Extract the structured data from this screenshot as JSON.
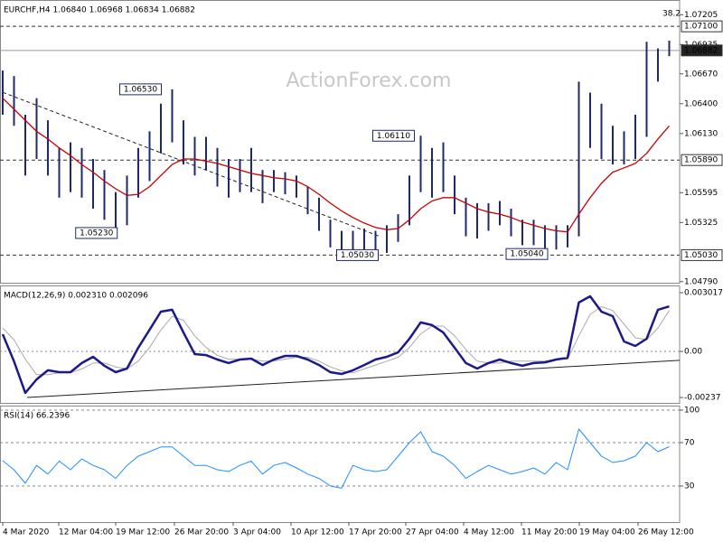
{
  "chart_data": [
    {
      "type": "hlbar",
      "title": "EURCHF,H4  1.06840 1.06968 1.06834 1.06882",
      "watermark": "ActionForex.com",
      "fib_label": "38.2",
      "xlim": [
        -0.24,
        59.92
      ],
      "ylim": [
        1.0478,
        1.0733
      ],
      "yticks": [
        1.07205,
        1.06935,
        {
          "value": 1.0667,
          "label": "1.06670"
        },
        {
          "value": 1.064,
          "label": "1.06400"
        },
        {
          "value": 1.0613,
          "label": "1.06130"
        },
        1.05595,
        1.05325,
        {
          "value": 1.0479,
          "label": "1.04790"
        }
      ],
      "series": [
        {
          "color": "#1c2a6b",
          "high": [
            1.067,
            1.0665,
            1.063,
            1.0645,
            1.0625,
            1.06,
            1.0605,
            1.06,
            1.059,
            1.058,
            1.056,
            1.0575,
            1.06,
            1.0615,
            1.064,
            1.0653,
            1.0625,
            1.061,
            1.061,
            1.06,
            1.059,
            1.059,
            1.06,
            1.058,
            1.058,
            1.0578,
            1.0575,
            1.0565,
            1.0555,
            1.0535,
            1.0525,
            1.0525,
            1.0527,
            1.0525,
            1.053,
            1.054,
            1.0575,
            1.0611,
            1.06,
            1.0605,
            1.0575,
            1.0555,
            1.055,
            1.055,
            1.0552,
            1.0545,
            1.0535,
            1.0535,
            1.053,
            1.053,
            1.053,
            1.066,
            1.065,
            1.064,
            1.062,
            1.0615,
            1.063,
            1.0696,
            1.069,
            1.0697
          ],
          "low": [
            1.063,
            1.062,
            1.0575,
            1.059,
            1.0575,
            1.0555,
            1.056,
            1.0555,
            1.0545,
            1.0535,
            1.0523,
            1.053,
            1.0555,
            1.057,
            1.0595,
            1.0605,
            1.0585,
            1.0575,
            1.058,
            1.0565,
            1.0555,
            1.056,
            1.056,
            1.055,
            1.056,
            1.0558,
            1.0555,
            1.054,
            1.0525,
            1.051,
            1.0503,
            1.0506,
            1.0507,
            1.0505,
            1.0505,
            1.0515,
            1.053,
            1.056,
            1.0555,
            1.056,
            1.054,
            1.052,
            1.0518,
            1.0525,
            1.053,
            1.052,
            1.0512,
            1.0512,
            1.0504,
            1.0508,
            1.051,
            1.052,
            1.06,
            1.059,
            1.0585,
            1.0585,
            1.059,
            1.061,
            1.066,
            1.0683
          ]
        },
        {
          "color": "#cc0000",
          "values": [
            1.0645,
            1.0635,
            1.0625,
            1.0615,
            1.0608,
            1.06,
            1.0593,
            1.0585,
            1.0578,
            1.057,
            1.0563,
            1.0557,
            1.0558,
            1.0565,
            1.0575,
            1.0585,
            1.059,
            1.059,
            1.0588,
            1.0586,
            1.0583,
            1.058,
            1.0577,
            1.0575,
            1.0573,
            1.0572,
            1.057,
            1.0565,
            1.0558,
            1.055,
            1.0543,
            1.0537,
            1.0532,
            1.0528,
            1.0526,
            1.0527,
            1.0535,
            1.0545,
            1.0552,
            1.0555,
            1.0555,
            1.055,
            1.0545,
            1.0542,
            1.054,
            1.0537,
            1.0533,
            1.053,
            1.0527,
            1.0525,
            1.0524,
            1.054,
            1.0555,
            1.0568,
            1.0578,
            1.0582,
            1.0586,
            1.0595,
            1.0608,
            1.062
          ]
        }
      ],
      "trendlines": [
        {
          "x": [
            0,
            33.4
          ],
          "y": [
            1.06503,
            1.05198
          ]
        }
      ],
      "levels": [
        {
          "value": 1.071,
          "label": "1.07100",
          "style": "dashed"
        },
        {
          "value": 1.06882,
          "label": "1.06882",
          "style": "current"
        },
        {
          "value": 1.0589,
          "label": "1.05890",
          "style": "dashed"
        },
        {
          "value": 1.0503,
          "label": "1.05030",
          "style": "dashed"
        }
      ],
      "annotations": [
        {
          "value": 1.0653,
          "label": "1.06530",
          "x": 12.2
        },
        {
          "value": 1.0611,
          "label": "1.06110",
          "x": 34.6
        },
        {
          "value": 1.0523,
          "label": "1.05230",
          "x": 8.3
        },
        {
          "value": 1.0503,
          "label": "1.05030",
          "x": 31.4
        },
        {
          "value": 1.0504,
          "label": "1.05040",
          "x": 46.4
        }
      ]
    },
    {
      "type": "line",
      "title": "MACD(12,26,9) 0.002310 0.002096",
      "xlim": [
        -0.24,
        59.92
      ],
      "ylim": [
        -0.002646,
        0.003342
      ],
      "yticks": [
        0.003017,
        {
          "value": 0,
          "label": "0.00"
        },
        -0.00237
      ],
      "series": [
        {
          "color": "#aaaaaa",
          "width": 1,
          "values": [
            0.0012,
            0.0006,
            -0.0004,
            -0.0012,
            -0.0012,
            -0.0011,
            -0.0011,
            -0.0009,
            -0.0006,
            -0.0006,
            -0.0008,
            -0.0009,
            -0.0005,
            0.0002,
            0.0011,
            0.0018,
            0.0016,
            0.0008,
            0.0002,
            -0.0002,
            -0.0004,
            -0.0004,
            -0.0004,
            -0.0005,
            -0.0005,
            -0.0004,
            -0.0003,
            -0.0003,
            -0.0005,
            -0.0008,
            -0.001,
            -0.0011,
            -0.0009,
            -0.0007,
            -0.0005,
            -0.0003,
            0.0002,
            0.0009,
            0.0013,
            0.0013,
            0.0008,
            0.0001,
            -0.0005,
            -0.0006,
            -0.0006,
            -0.0005,
            -0.0005,
            -0.0005,
            -0.0005,
            -0.0004,
            -0.0004,
            0.0008,
            0.0019,
            0.0023,
            0.0021,
            0.0014,
            0.0007,
            0.0006,
            0.0012,
            0.002096
          ]
        },
        {
          "color": "#1a1a8c",
          "width": 2.5,
          "values": [
            0.00088,
            -0.00051,
            -0.00213,
            -0.00144,
            -0.00097,
            -0.00107,
            -0.00107,
            -0.0006,
            -0.00028,
            -0.00074,
            -0.00107,
            -0.00088,
            0.00019,
            0.00111,
            0.00204,
            0.00214,
            0.00097,
            -0.00014,
            -0.00019,
            -0.00042,
            -0.0006,
            -0.00042,
            -0.00037,
            -0.0007,
            -0.00042,
            -0.00023,
            -0.00023,
            -0.00042,
            -0.0007,
            -0.00107,
            -0.00116,
            -0.00097,
            -0.0007,
            -0.00042,
            -0.00028,
            -5e-05,
            0.00065,
            0.00149,
            0.00135,
            0.00097,
            0.00019,
            -0.0006,
            -0.00088,
            -0.0006,
            -0.00042,
            -0.0006,
            -0.00074,
            -0.0006,
            -0.00056,
            -0.00042,
            -0.00033,
            0.00251,
            0.00283,
            0.00204,
            0.00181,
            0.00051,
            0.00028,
            0.00065,
            0.00214,
            0.00231
          ]
        }
      ],
      "trendlines": [
        {
          "x": [
            2.16,
            59.92
          ],
          "y": [
            -0.00237,
            -0.00046
          ]
        }
      ]
    },
    {
      "type": "line",
      "title": "RSI(14) 66.2396",
      "xlim": [
        -0.24,
        59.92
      ],
      "ylim": [
        -3.3,
        103.3
      ],
      "yticks": [
        100,
        70,
        30
      ],
      "grid": true,
      "series": [
        {
          "color": "#1e90ff",
          "width": 1,
          "values": [
            53.3,
            45,
            32.5,
            49,
            41,
            53,
            45,
            55,
            49,
            45,
            37,
            49,
            57.5,
            61.7,
            66,
            66,
            57.5,
            49,
            49,
            45,
            43.3,
            49,
            53,
            41,
            49,
            51.7,
            46.7,
            41,
            37,
            30,
            28,
            49,
            45,
            43.3,
            45,
            57.5,
            70,
            80,
            61.7,
            57.5,
            49,
            37,
            43.3,
            49,
            45,
            41,
            43.3,
            46.7,
            41,
            51.7,
            45,
            82.5,
            70,
            57.5,
            51.7,
            53.3,
            57.5,
            70,
            61.7,
            66.2396
          ]
        }
      ],
      "xticks": [
        {
          "value": 0,
          "label": "4 Mar 2020"
        },
        {
          "value": 4.96,
          "label": "12 Mar 04:00"
        },
        {
          "value": 10,
          "label": "19 Mar 12:00"
        },
        {
          "value": 15.2,
          "label": "26 Mar 20:00"
        },
        {
          "value": 20.4,
          "label": "3 Apr 04:00"
        },
        {
          "value": 25.52,
          "label": "10 Apr 12:00"
        },
        {
          "value": 30.64,
          "label": "17 Apr 20:00"
        },
        {
          "value": 35.68,
          "label": "27 Apr 04:00"
        },
        {
          "value": 40.8,
          "label": "4 May 12:00"
        },
        {
          "value": 45.92,
          "label": "11 May 20:00"
        },
        {
          "value": 51.04,
          "label": "19 May 04:00"
        },
        {
          "value": 56.24,
          "label": "26 May 12:00"
        }
      ]
    }
  ]
}
